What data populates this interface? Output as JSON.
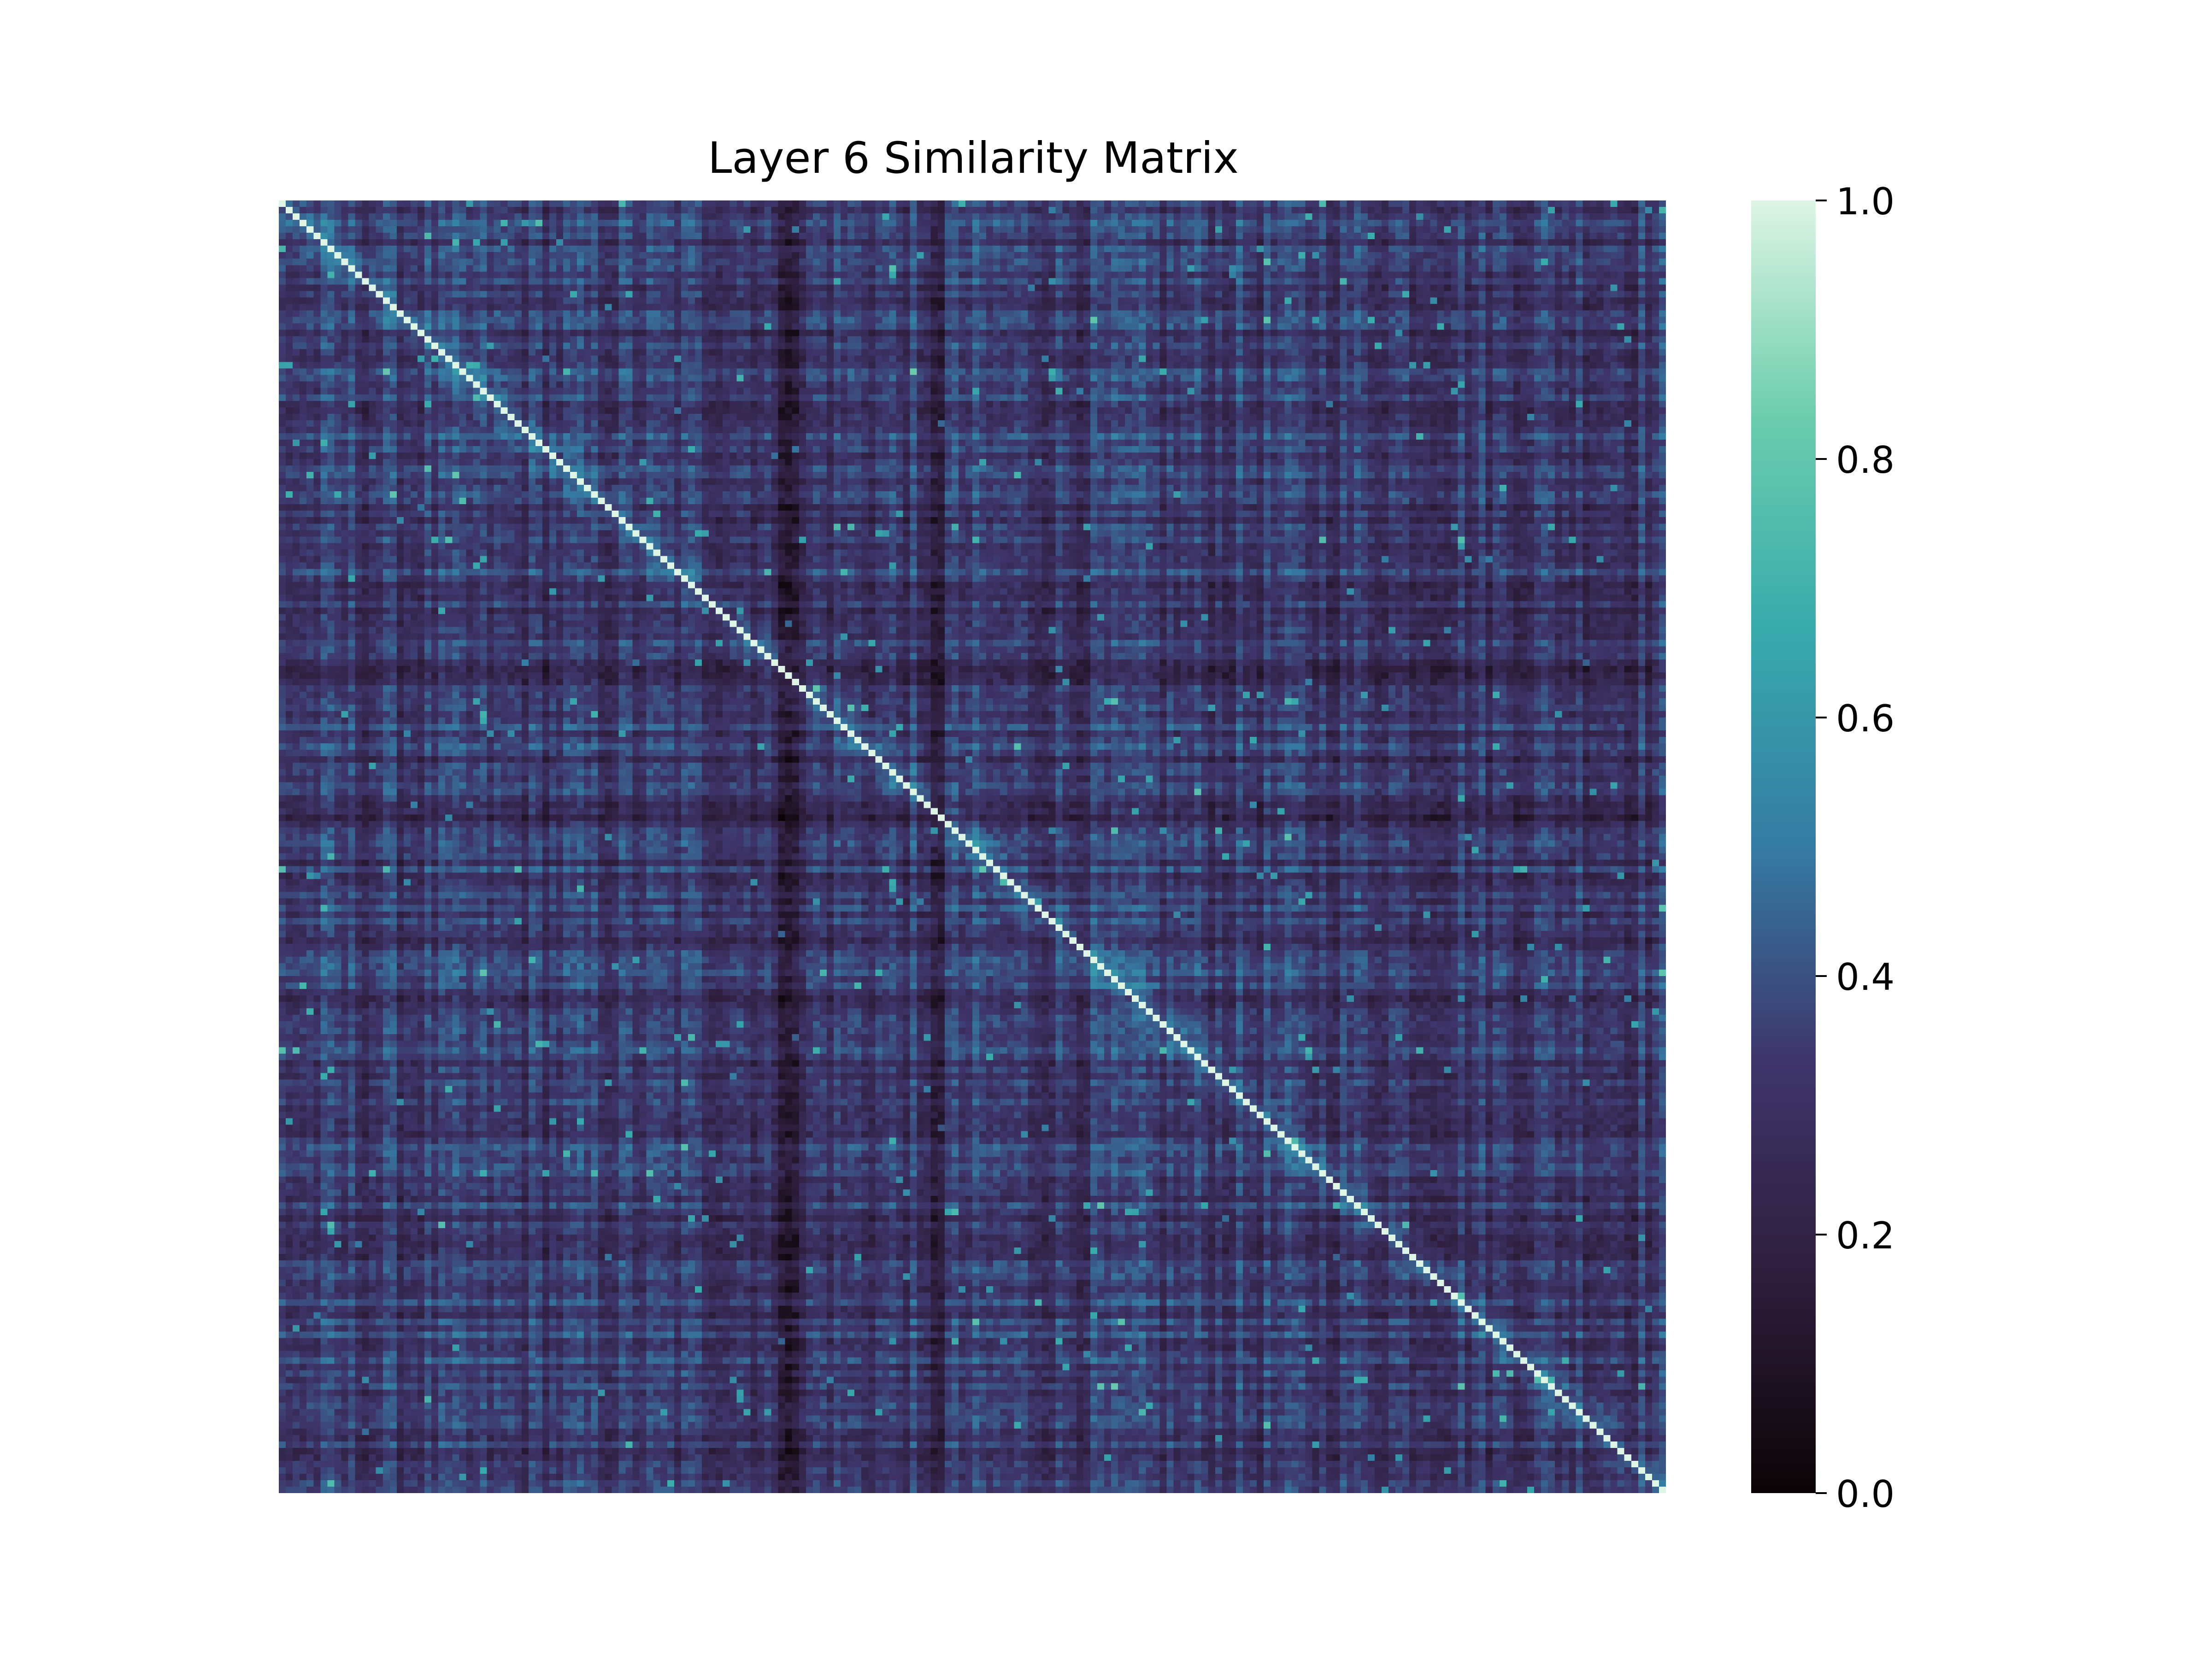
{
  "chart_data": {
    "type": "heatmap",
    "title": "Layer 6 Similarity Matrix",
    "xlabel": "",
    "ylabel": "",
    "matrix_size": 200,
    "diagonal_value": 1.0,
    "background_mean": 0.33,
    "band_rows_dark": [
      0.36,
      0.47
    ],
    "value_range": [
      0.0,
      1.0
    ],
    "colormap": "mako",
    "colormap_stops": [
      "#0b0405",
      "#2e1e3c",
      "#3e356b",
      "#357ba3",
      "#38aaac",
      "#6ccdad",
      "#def5e5"
    ],
    "colorbar": {
      "ticks": [
        0.0,
        0.2,
        0.4,
        0.6,
        0.8,
        1.0
      ],
      "tick_labels": [
        "0.0",
        "0.2",
        "0.4",
        "0.6",
        "0.8",
        "1.0"
      ]
    },
    "axis_ticks_visible": false,
    "grid": false,
    "legend": "none"
  }
}
